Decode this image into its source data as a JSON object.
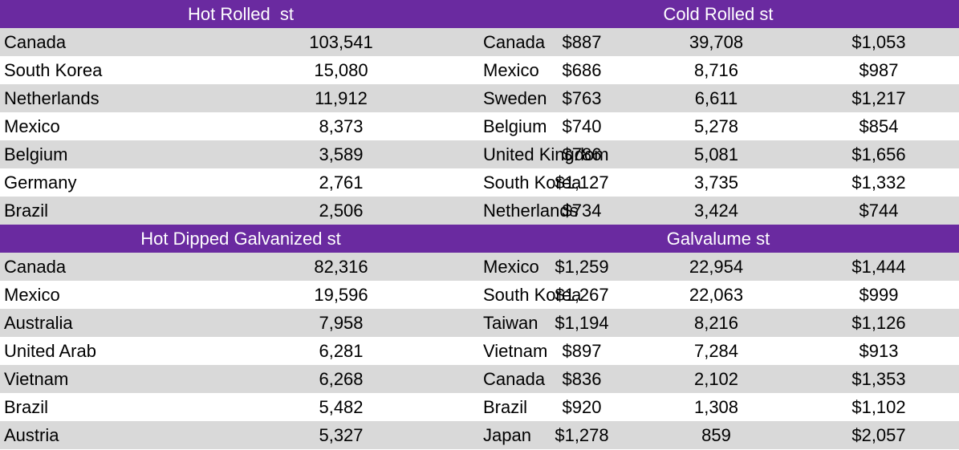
{
  "sections": [
    {
      "left": {
        "title": "Hot Rolled  st",
        "rows": [
          {
            "country": "Canada",
            "tons": "103,541",
            "price": "$887"
          },
          {
            "country": "South Korea",
            "tons": "15,080",
            "price": "$686"
          },
          {
            "country": "Netherlands",
            "tons": "11,912",
            "price": "$763"
          },
          {
            "country": "Mexico",
            "tons": "8,373",
            "price": "$740"
          },
          {
            "country": "Belgium",
            "tons": "3,589",
            "price": "$786"
          },
          {
            "country": "Germany",
            "tons": "2,761",
            "price": "$1,127"
          },
          {
            "country": "Brazil",
            "tons": "2,506",
            "price": "$734"
          }
        ]
      },
      "right": {
        "title": "Cold Rolled st",
        "rows": [
          {
            "country": "Canada",
            "tons": "39,708",
            "price": "$1,053"
          },
          {
            "country": "Mexico",
            "tons": "8,716",
            "price": "$987"
          },
          {
            "country": "Sweden",
            "tons": "6,611",
            "price": "$1,217"
          },
          {
            "country": "Belgium",
            "tons": "5,278",
            "price": "$854"
          },
          {
            "country": "United Kingdom",
            "tons": "5,081",
            "price": "$1,656"
          },
          {
            "country": "South Korea",
            "tons": "3,735",
            "price": "$1,332"
          },
          {
            "country": "Netherlands",
            "tons": "3,424",
            "price": "$744"
          }
        ]
      }
    },
    {
      "left": {
        "title": "Hot Dipped Galvanized st",
        "rows": [
          {
            "country": "Canada",
            "tons": "82,316",
            "price": "$1,259"
          },
          {
            "country": "Mexico",
            "tons": "19,596",
            "price": "$1,267"
          },
          {
            "country": "Australia",
            "tons": "7,958",
            "price": "$1,194"
          },
          {
            "country": "United Arab",
            "tons": "6,281",
            "price": "$897"
          },
          {
            "country": "Vietnam",
            "tons": "6,268",
            "price": "$836"
          },
          {
            "country": "Brazil",
            "tons": "5,482",
            "price": "$920"
          },
          {
            "country": "Austria",
            "tons": "5,327",
            "price": "$1,278"
          }
        ]
      },
      "right": {
        "title": "Galvalume st",
        "rows": [
          {
            "country": "Mexico",
            "tons": "22,954",
            "price": "$1,444"
          },
          {
            "country": "South Korea",
            "tons": "22,063",
            "price": "$999"
          },
          {
            "country": "Taiwan",
            "tons": "8,216",
            "price": "$1,126"
          },
          {
            "country": "Vietnam",
            "tons": "7,284",
            "price": "$913"
          },
          {
            "country": "Canada",
            "tons": "2,102",
            "price": "$1,353"
          },
          {
            "country": "Brazil",
            "tons": "1,308",
            "price": "$1,102"
          },
          {
            "country": "Japan",
            "tons": "859",
            "price": "$2,057"
          }
        ]
      }
    }
  ],
  "colors": {
    "header_band": "#6a2aa0",
    "header_text": "#ffffff",
    "shaded_row": "#d9d9d9",
    "plain_row": "#ffffff"
  }
}
